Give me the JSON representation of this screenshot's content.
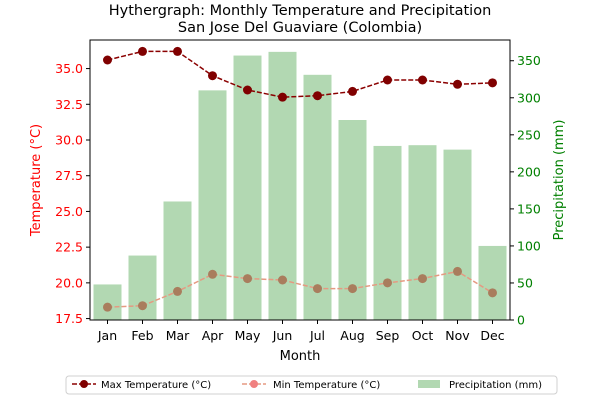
{
  "chart_data": {
    "type": "bar+line",
    "title": "Hythergraph: Monthly Temperature and Precipitation",
    "subtitle": "San Jose Del Guaviare (Colombia)",
    "xlabel": "Month",
    "ylabel_left": "Temperature (°C)",
    "ylabel_right": "Precipitation (mm)",
    "categories": [
      "Jan",
      "Feb",
      "Mar",
      "Apr",
      "May",
      "Jun",
      "Jul",
      "Aug",
      "Sep",
      "Oct",
      "Nov",
      "Dec"
    ],
    "ylim_left": [
      17.4,
      37.0
    ],
    "ylim_right": [
      0,
      378
    ],
    "yticks_left": [
      "17.5",
      "20.0",
      "22.5",
      "25.0",
      "27.5",
      "30.0",
      "32.5",
      "35.0"
    ],
    "yticks_right": [
      "0",
      "50",
      "100",
      "150",
      "200",
      "250",
      "300",
      "350"
    ],
    "grid": false,
    "legend_position": "bottom",
    "series": [
      {
        "name": "Max Temperature (°C)",
        "axis": "left",
        "kind": "line",
        "color": "#8b0000",
        "values": [
          35.6,
          36.2,
          36.2,
          34.5,
          33.5,
          33.0,
          33.1,
          33.4,
          34.2,
          34.2,
          33.9,
          34.0
        ]
      },
      {
        "name": "Min Temperature (°C)",
        "axis": "left",
        "kind": "line",
        "color": "#f08080",
        "values": [
          18.3,
          18.4,
          19.4,
          20.6,
          20.3,
          20.2,
          19.6,
          19.6,
          20.0,
          20.3,
          20.8,
          19.3
        ]
      },
      {
        "name": "Precipitation (mm)",
        "axis": "right",
        "kind": "bar",
        "color": "#b2d8b2",
        "values": [
          48,
          87,
          160,
          310,
          357,
          362,
          331,
          270,
          235,
          236,
          230,
          100
        ]
      }
    ],
    "colors": {
      "left_axis": "#ff0000",
      "right_axis": "#008000",
      "max_marker": "#800000",
      "min_marker": "#a97d5d",
      "min_line": "#e59a82"
    }
  }
}
